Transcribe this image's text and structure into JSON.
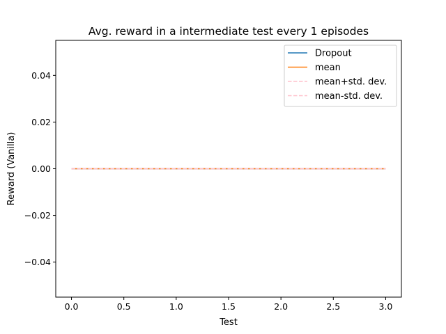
{
  "chart_data": {
    "type": "line",
    "title": "Avg. reward in a intermediate test every 1 episodes",
    "xlabel": "Test",
    "ylabel": "Reward (Vanilla)",
    "xlim": [
      -0.15,
      3.15
    ],
    "ylim": [
      -0.055,
      0.055
    ],
    "x_ticks": [
      0.0,
      0.5,
      1.0,
      1.5,
      2.0,
      2.5,
      3.0
    ],
    "x_tick_labels": [
      "0.0",
      "0.5",
      "1.0",
      "1.5",
      "2.0",
      "2.5",
      "3.0"
    ],
    "y_ticks": [
      -0.04,
      -0.02,
      0.0,
      0.02,
      0.04
    ],
    "y_tick_labels": [
      "−0.04",
      "−0.02",
      "0.00",
      "0.02",
      "0.04"
    ],
    "grid": false,
    "legend_position": "top-right",
    "series": [
      {
        "name": "Dropout",
        "x": [
          0,
          1,
          2,
          3
        ],
        "y": [
          0,
          0,
          0,
          0
        ],
        "color": "#1f77b4",
        "style": "solid"
      },
      {
        "name": "mean",
        "x": [
          0,
          1,
          2,
          3
        ],
        "y": [
          0,
          0,
          0,
          0
        ],
        "color": "#ff7f0e",
        "style": "solid"
      },
      {
        "name": "mean+std. dev.",
        "x": [
          0,
          1,
          2,
          3
        ],
        "y": [
          0,
          0,
          0,
          0
        ],
        "color": "#ffc0cb",
        "style": "dashed"
      },
      {
        "name": "mean-std. dev.",
        "x": [
          0,
          1,
          2,
          3
        ],
        "y": [
          0,
          0,
          0,
          0
        ],
        "color": "#ffc0cb",
        "style": "dashed"
      }
    ]
  }
}
